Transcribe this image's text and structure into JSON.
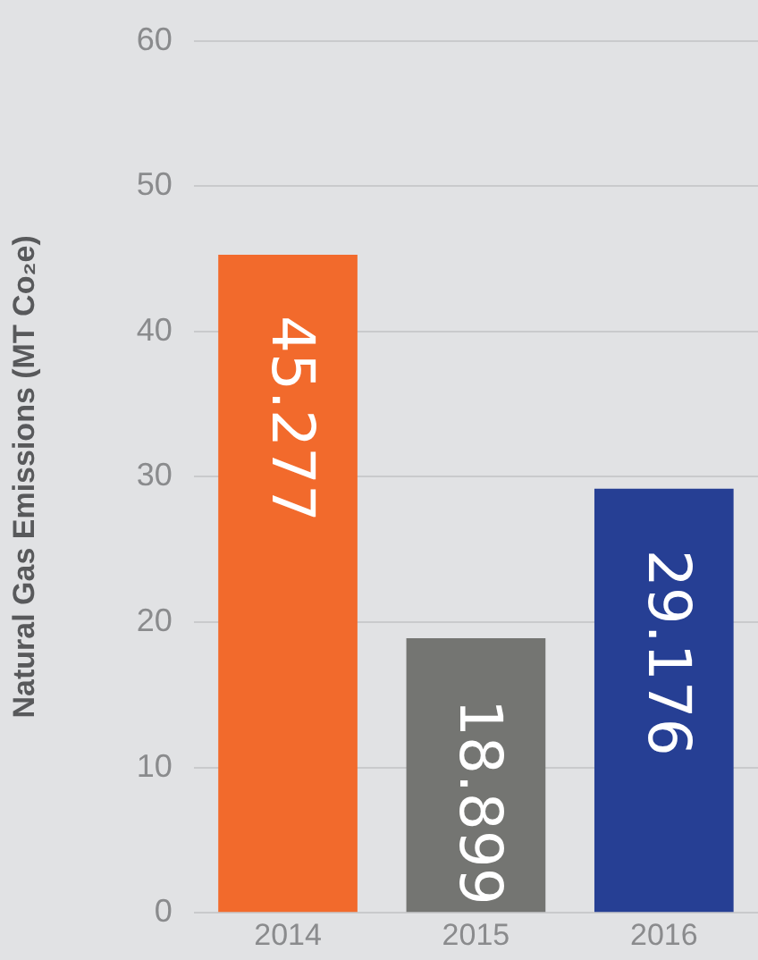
{
  "chart_data": {
    "type": "bar",
    "ylabel": "Natural Gas Emissions (MT Co₂e)",
    "categories": [
      "2014",
      "2015",
      "2016"
    ],
    "values": [
      45.277,
      18.899,
      29.176
    ],
    "colors": [
      "#f26a2c",
      "#747572",
      "#263f94"
    ],
    "ylim": [
      0,
      60
    ],
    "yticks": [
      0,
      10,
      20,
      30,
      40,
      50,
      60
    ],
    "grid": "y",
    "data_labels": true
  }
}
